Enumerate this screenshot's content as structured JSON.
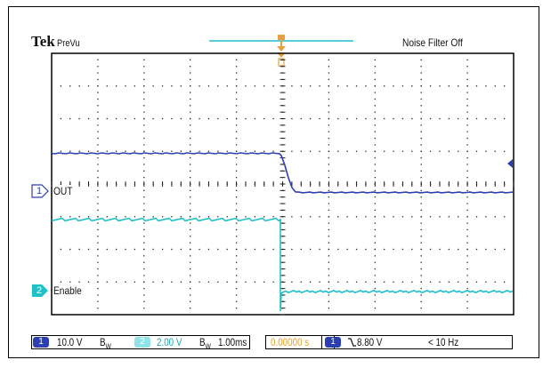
{
  "header": {
    "brand": "Tek",
    "mode": "PreVu",
    "noise_filter": "Noise Filter Off"
  },
  "channels": [
    {
      "number": "1",
      "label": "OUT",
      "color": "#2b3fb3"
    },
    {
      "number": "2",
      "label": "Enable",
      "color": "#1fc0c8"
    }
  ],
  "status_bar": {
    "ch1_chip": "1",
    "ch1_scale": "10.0 V",
    "ch1_bw": "B",
    "ch1_bw_sub": "W",
    "ch2_chip": "2",
    "ch2_scale": "2.00 V",
    "ch2_bw": "B",
    "ch2_bw_sub": "W",
    "timebase": "1.00ms",
    "trigger_pos": "0.00000 s",
    "trigger_chip": "1",
    "trigger_slope_icon": "falling-edge-icon",
    "trigger_level": "8.80 V",
    "trigger_freq": "< 10 Hz"
  },
  "colors": {
    "ch1": "#2b3fb3",
    "ch2": "#1fc0c8",
    "trigger": "#e8a040",
    "grid": "#222222",
    "timebase_highlight": "#e8a020"
  }
}
